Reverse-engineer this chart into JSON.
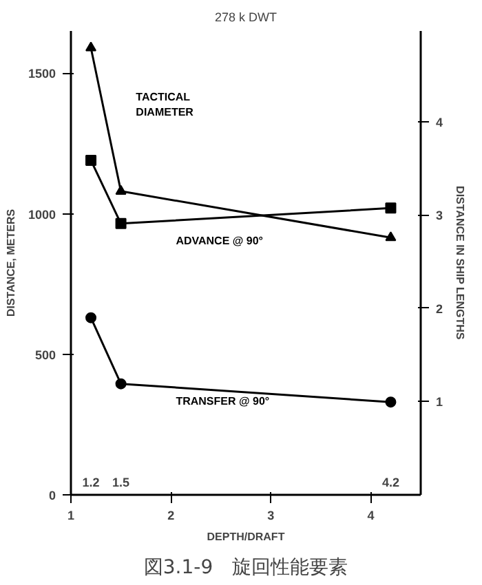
{
  "chart_data": {
    "type": "line",
    "title": "278 k DWT",
    "xlabel": "DEPTH/DRAFT",
    "ylabel": "DISTANCE, METERS",
    "y2label": "DISTANCE IN SHIP LENGTHS",
    "x": [
      1.2,
      1.5,
      4.2
    ],
    "series": [
      {
        "name": "TACTICAL\nDIAMETER",
        "color": "#000000",
        "marker": "triangle",
        "values": [
          1590,
          1080,
          915
        ]
      },
      {
        "name": "ADVANCE @ 90°",
        "color": "#000000",
        "marker": "square",
        "values": [
          1190,
          965,
          1020
        ]
      },
      {
        "name": "TRANSFER @ 90°",
        "color": "#000000",
        "marker": "circle",
        "values": [
          630,
          395,
          330
        ]
      }
    ],
    "xlim": [
      1,
      4.5
    ],
    "xticks": [
      1,
      2,
      3,
      4
    ],
    "ylim": [
      0,
      1650
    ],
    "yticks": [
      0,
      500,
      1000,
      1500
    ],
    "y2lim": [
      0,
      4.97
    ],
    "y2ticks": [
      1,
      2,
      3,
      4
    ],
    "grid": false,
    "line_style": "solid",
    "annotations": [
      "1.2",
      "1.5",
      "4.2",
      "図3.1-9　旋回性能要素"
    ]
  }
}
